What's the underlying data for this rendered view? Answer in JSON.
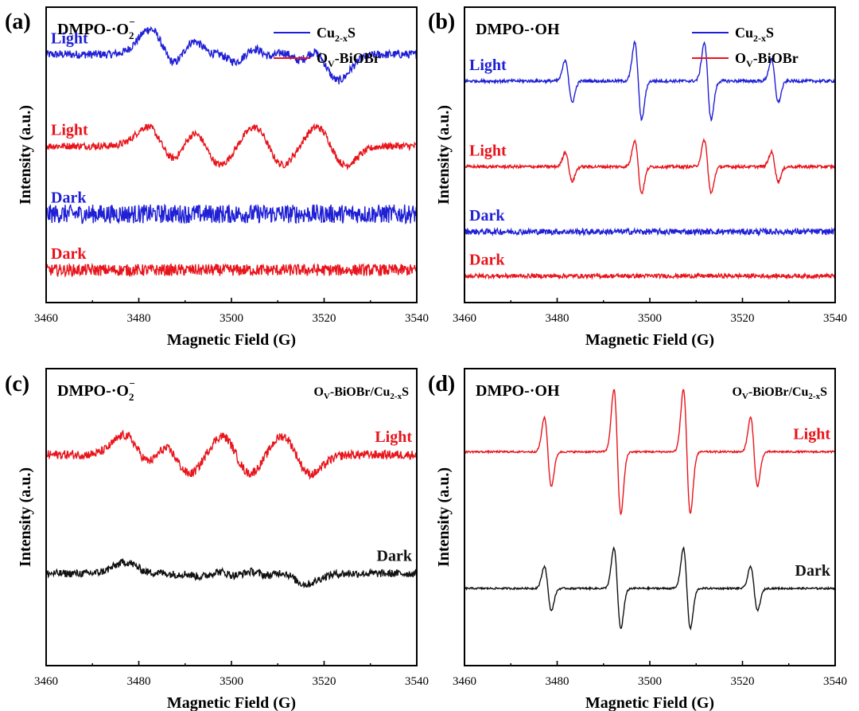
{
  "chart_data": [
    {
      "type": "line",
      "panel_label": "(a)",
      "title": "DMPO-·O2−",
      "title_main": "DMPO-·O",
      "title_sub": "2",
      "title_sup": "−",
      "xlabel": "Magnetic Field (G)",
      "ylabel": "Intensity (a.u.)",
      "xlim": [
        3460,
        3540
      ],
      "ylim": [
        0,
        10
      ],
      "x_ticks": [
        3460,
        3480,
        3500,
        3520,
        3540
      ],
      "x_tick_labels": [
        "3460",
        "3480",
        "3500",
        "3520",
        "3540"
      ],
      "legend": [
        {
          "name": "Cu2-xS",
          "main": "Cu",
          "sub": "2-x",
          "suffix": "S",
          "color": "#1f1fd6"
        },
        {
          "name": "OV-BiOBr",
          "main": "O",
          "sub": "V",
          "suffix": "-BiOBr",
          "color": "#e8141b"
        }
      ],
      "series": [
        {
          "name": "Cu2-xS Light",
          "label": "Light",
          "color": "#1f1fd6",
          "signal": "superoxide",
          "baseline": 8.4,
          "amplitude": 0.85,
          "noise": 0.14,
          "peaks": [
            3485.5,
            3493.5,
            3499.5,
            3506.5,
            3513,
            3520
          ]
        },
        {
          "name": "OV-BiOBr Light",
          "label": "Light",
          "color": "#e8141b",
          "signal": "superoxide",
          "baseline": 5.3,
          "amplitude": 0.65,
          "noise": 0.12,
          "peaks": [
            3485,
            3494.5,
            3508,
            3521.5
          ]
        },
        {
          "name": "Cu2-xS Dark",
          "label": "Dark",
          "color": "#1f1fd6",
          "signal": "noise",
          "baseline": 3.0,
          "amplitude": 0,
          "noise": 0.32,
          "peaks": []
        },
        {
          "name": "OV-BiOBr Dark",
          "label": "Dark",
          "color": "#e8141b",
          "signal": "noise",
          "baseline": 1.1,
          "amplitude": 0,
          "noise": 0.2,
          "peaks": []
        }
      ]
    },
    {
      "type": "line",
      "panel_label": "(b)",
      "title": "DMPO-·OH",
      "title_main": "DMPO-·OH",
      "title_sub": "",
      "title_sup": "",
      "xlabel": "Magnetic Field (G)",
      "ylabel": "Intensity (a.u.)",
      "xlim": [
        3460,
        3540
      ],
      "ylim": [
        0,
        10
      ],
      "x_ticks": [
        3460,
        3480,
        3500,
        3520,
        3540
      ],
      "x_tick_labels": [
        "3460",
        "3480",
        "3500",
        "3520",
        "3540"
      ],
      "legend": [
        {
          "name": "Cu2-xS",
          "main": "Cu",
          "sub": "2-x",
          "suffix": "S",
          "color": "#1f1fd6"
        },
        {
          "name": "OV-BiOBr",
          "main": "O",
          "sub": "V",
          "suffix": "-BiOBr",
          "color": "#e8141b"
        }
      ],
      "series": [
        {
          "name": "Cu2-xS Light",
          "label": "Light",
          "color": "#1f1fd6",
          "signal": "hydroxyl",
          "baseline": 7.5,
          "amplitude": 1.3,
          "noise": 0.05,
          "peaks": [
            3482.5,
            3497.5,
            3512.5,
            3527
          ],
          "weights": [
            0.55,
            1.0,
            1.0,
            0.55
          ]
        },
        {
          "name": "OV-BiOBr Light",
          "label": "Light",
          "color": "#e8141b",
          "signal": "hydroxyl",
          "baseline": 4.6,
          "amplitude": 0.9,
          "noise": 0.05,
          "peaks": [
            3482.5,
            3497.5,
            3512.5,
            3527
          ],
          "weights": [
            0.55,
            1.0,
            1.0,
            0.55
          ]
        },
        {
          "name": "Cu2-xS Dark",
          "label": "Dark",
          "color": "#1f1fd6",
          "signal": "noise",
          "baseline": 2.4,
          "amplitude": 0,
          "noise": 0.1,
          "peaks": []
        },
        {
          "name": "OV-BiOBr Dark",
          "label": "Dark",
          "color": "#e8141b",
          "signal": "noise",
          "baseline": 0.9,
          "amplitude": 0,
          "noise": 0.07,
          "peaks": []
        }
      ]
    },
    {
      "type": "line",
      "panel_label": "(c)",
      "title": "DMPO-·O2−",
      "title_main": "DMPO-·O",
      "title_sub": "2",
      "title_sup": "−",
      "sample_label": "OV-BiOBr/Cu2-xS",
      "sample_main": "O",
      "sample_sub1": "V",
      "sample_mid": "-BiOBr/Cu",
      "sample_sub2": "2-x",
      "sample_end": "S",
      "xlabel": "Magnetic Field (G)",
      "ylabel": "Intensity (a.u.)",
      "xlim": [
        3460,
        3540
      ],
      "ylim": [
        0,
        10
      ],
      "x_ticks": [
        3460,
        3480,
        3500,
        3520,
        3540
      ],
      "x_tick_labels": [
        "3460",
        "3480",
        "3500",
        "3520",
        "3540"
      ],
      "series": [
        {
          "name": "Light",
          "label": "Light",
          "color": "#e8141b",
          "signal": "superoxide",
          "baseline": 7.1,
          "amplitude": 0.65,
          "noise": 0.15,
          "peaks": [
            3480,
            3488,
            3501,
            3514
          ]
        },
        {
          "name": "Dark",
          "label": "Dark",
          "color": "#111111",
          "signal": "superoxide",
          "baseline": 3.1,
          "amplitude": 0.35,
          "noise": 0.13,
          "peaks": [
            3480,
            3486,
            3492,
            3499,
            3506,
            3513
          ]
        }
      ]
    },
    {
      "type": "line",
      "panel_label": "(d)",
      "title": "DMPO-·OH",
      "title_main": "DMPO-·OH",
      "title_sub": "",
      "title_sup": "",
      "sample_label": "OV-BiOBr/Cu2-xS",
      "sample_main": "O",
      "sample_sub1": "V",
      "sample_mid": "-BiOBr/Cu",
      "sample_sub2": "2-x",
      "sample_end": "S",
      "xlabel": "Magnetic Field (G)",
      "ylabel": "Intensity (a.u.)",
      "xlim": [
        3460,
        3540
      ],
      "ylim": [
        0,
        10
      ],
      "x_ticks": [
        3460,
        3480,
        3500,
        3520,
        3540
      ],
      "x_tick_labels": [
        "3460",
        "3480",
        "3500",
        "3520",
        "3540"
      ],
      "series": [
        {
          "name": "Light",
          "label": "Light",
          "color": "#e8141b",
          "signal": "hydroxyl",
          "baseline": 7.2,
          "amplitude": 2.1,
          "noise": 0.03,
          "peaks": [
            3478,
            3493,
            3508,
            3522.5
          ],
          "weights": [
            0.55,
            1.0,
            1.0,
            0.55
          ]
        },
        {
          "name": "Dark",
          "label": "Dark",
          "color": "#111111",
          "signal": "hydroxyl",
          "baseline": 2.6,
          "amplitude": 1.35,
          "noise": 0.03,
          "peaks": [
            3478,
            3493,
            3508,
            3522.5
          ],
          "weights": [
            0.55,
            1.0,
            1.0,
            0.55
          ]
        }
      ]
    }
  ]
}
